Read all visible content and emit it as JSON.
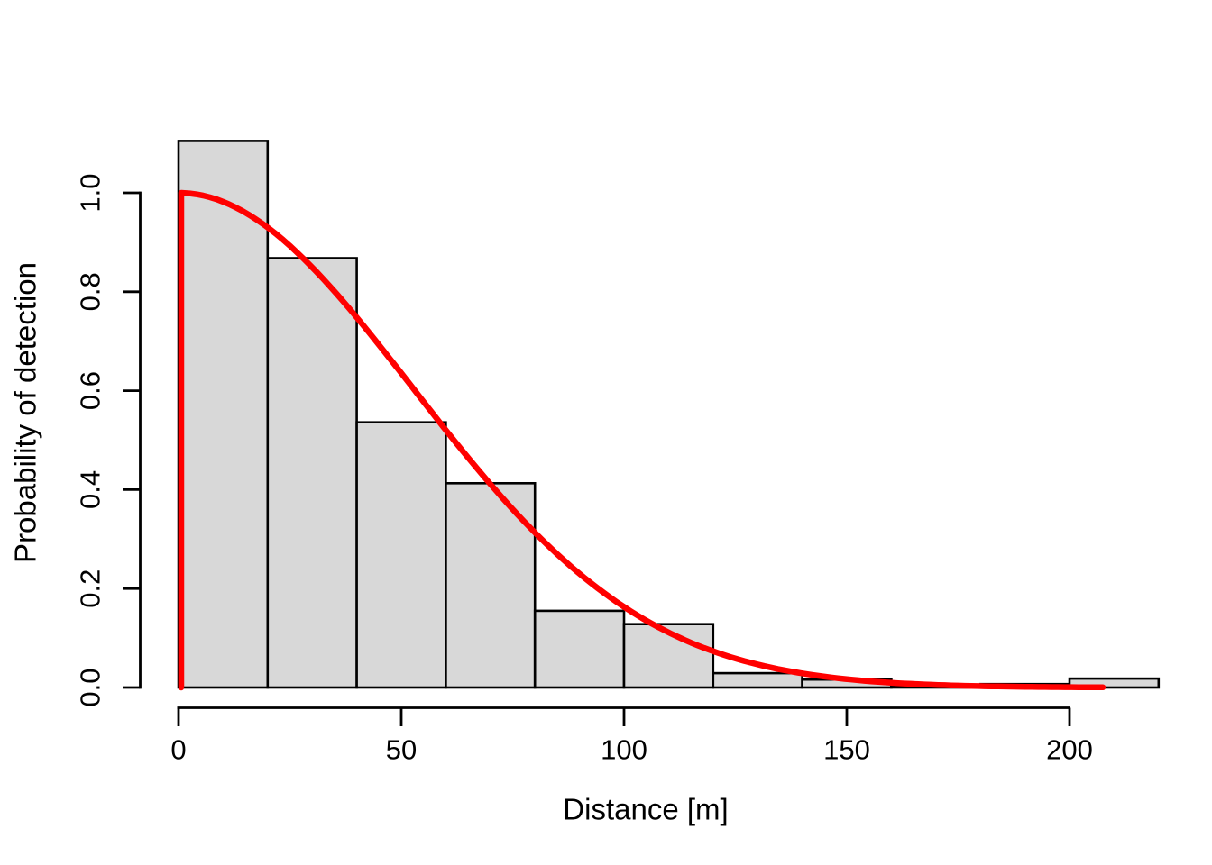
{
  "figure": {
    "background": "#ffffff"
  },
  "chart_data": {
    "type": "bar",
    "subtype": "histogram-with-curve",
    "title": "",
    "xlabel": "Distance [m]",
    "ylabel": "Probability of detection",
    "grid": false,
    "legend": "none",
    "xlim": [
      0,
      220
    ],
    "ylim": [
      0,
      1.13
    ],
    "x_ticks": [
      0,
      50,
      100,
      150,
      200
    ],
    "x_tick_labels": [
      "0",
      "50",
      "100",
      "150",
      "200"
    ],
    "y_ticks": [
      0.0,
      0.2,
      0.4,
      0.6,
      0.8,
      1.0
    ],
    "y_tick_labels": [
      "0.0",
      "0.2",
      "0.4",
      "0.6",
      "0.8",
      "1.0"
    ],
    "bin_width_m": 20,
    "bins": [
      [
        0,
        20
      ],
      [
        20,
        40
      ],
      [
        40,
        60
      ],
      [
        60,
        80
      ],
      [
        80,
        100
      ],
      [
        100,
        120
      ],
      [
        120,
        140
      ],
      [
        140,
        160
      ],
      [
        160,
        180
      ],
      [
        180,
        200
      ],
      [
        200,
        220
      ]
    ],
    "bar_values": [
      1.105,
      0.868,
      0.536,
      0.413,
      0.155,
      0.128,
      0.029,
      0.016,
      0.002,
      0.007,
      0.018
    ],
    "curve": {
      "name": "half-normal-detection-function",
      "model": "g(x) = exp(-x^2 / (2*sigma^2))",
      "sigma_m": 52.5,
      "x_start_m": 0,
      "x_end_m": 207.5,
      "peak_value": 1.0,
      "has_vertical_segment_at_zero": true
    },
    "colors": {
      "bar_fill": "#d8d8d8",
      "bar_border": "#000000",
      "curve": "#ff0000",
      "axis": "#000000",
      "text": "#000000"
    }
  }
}
